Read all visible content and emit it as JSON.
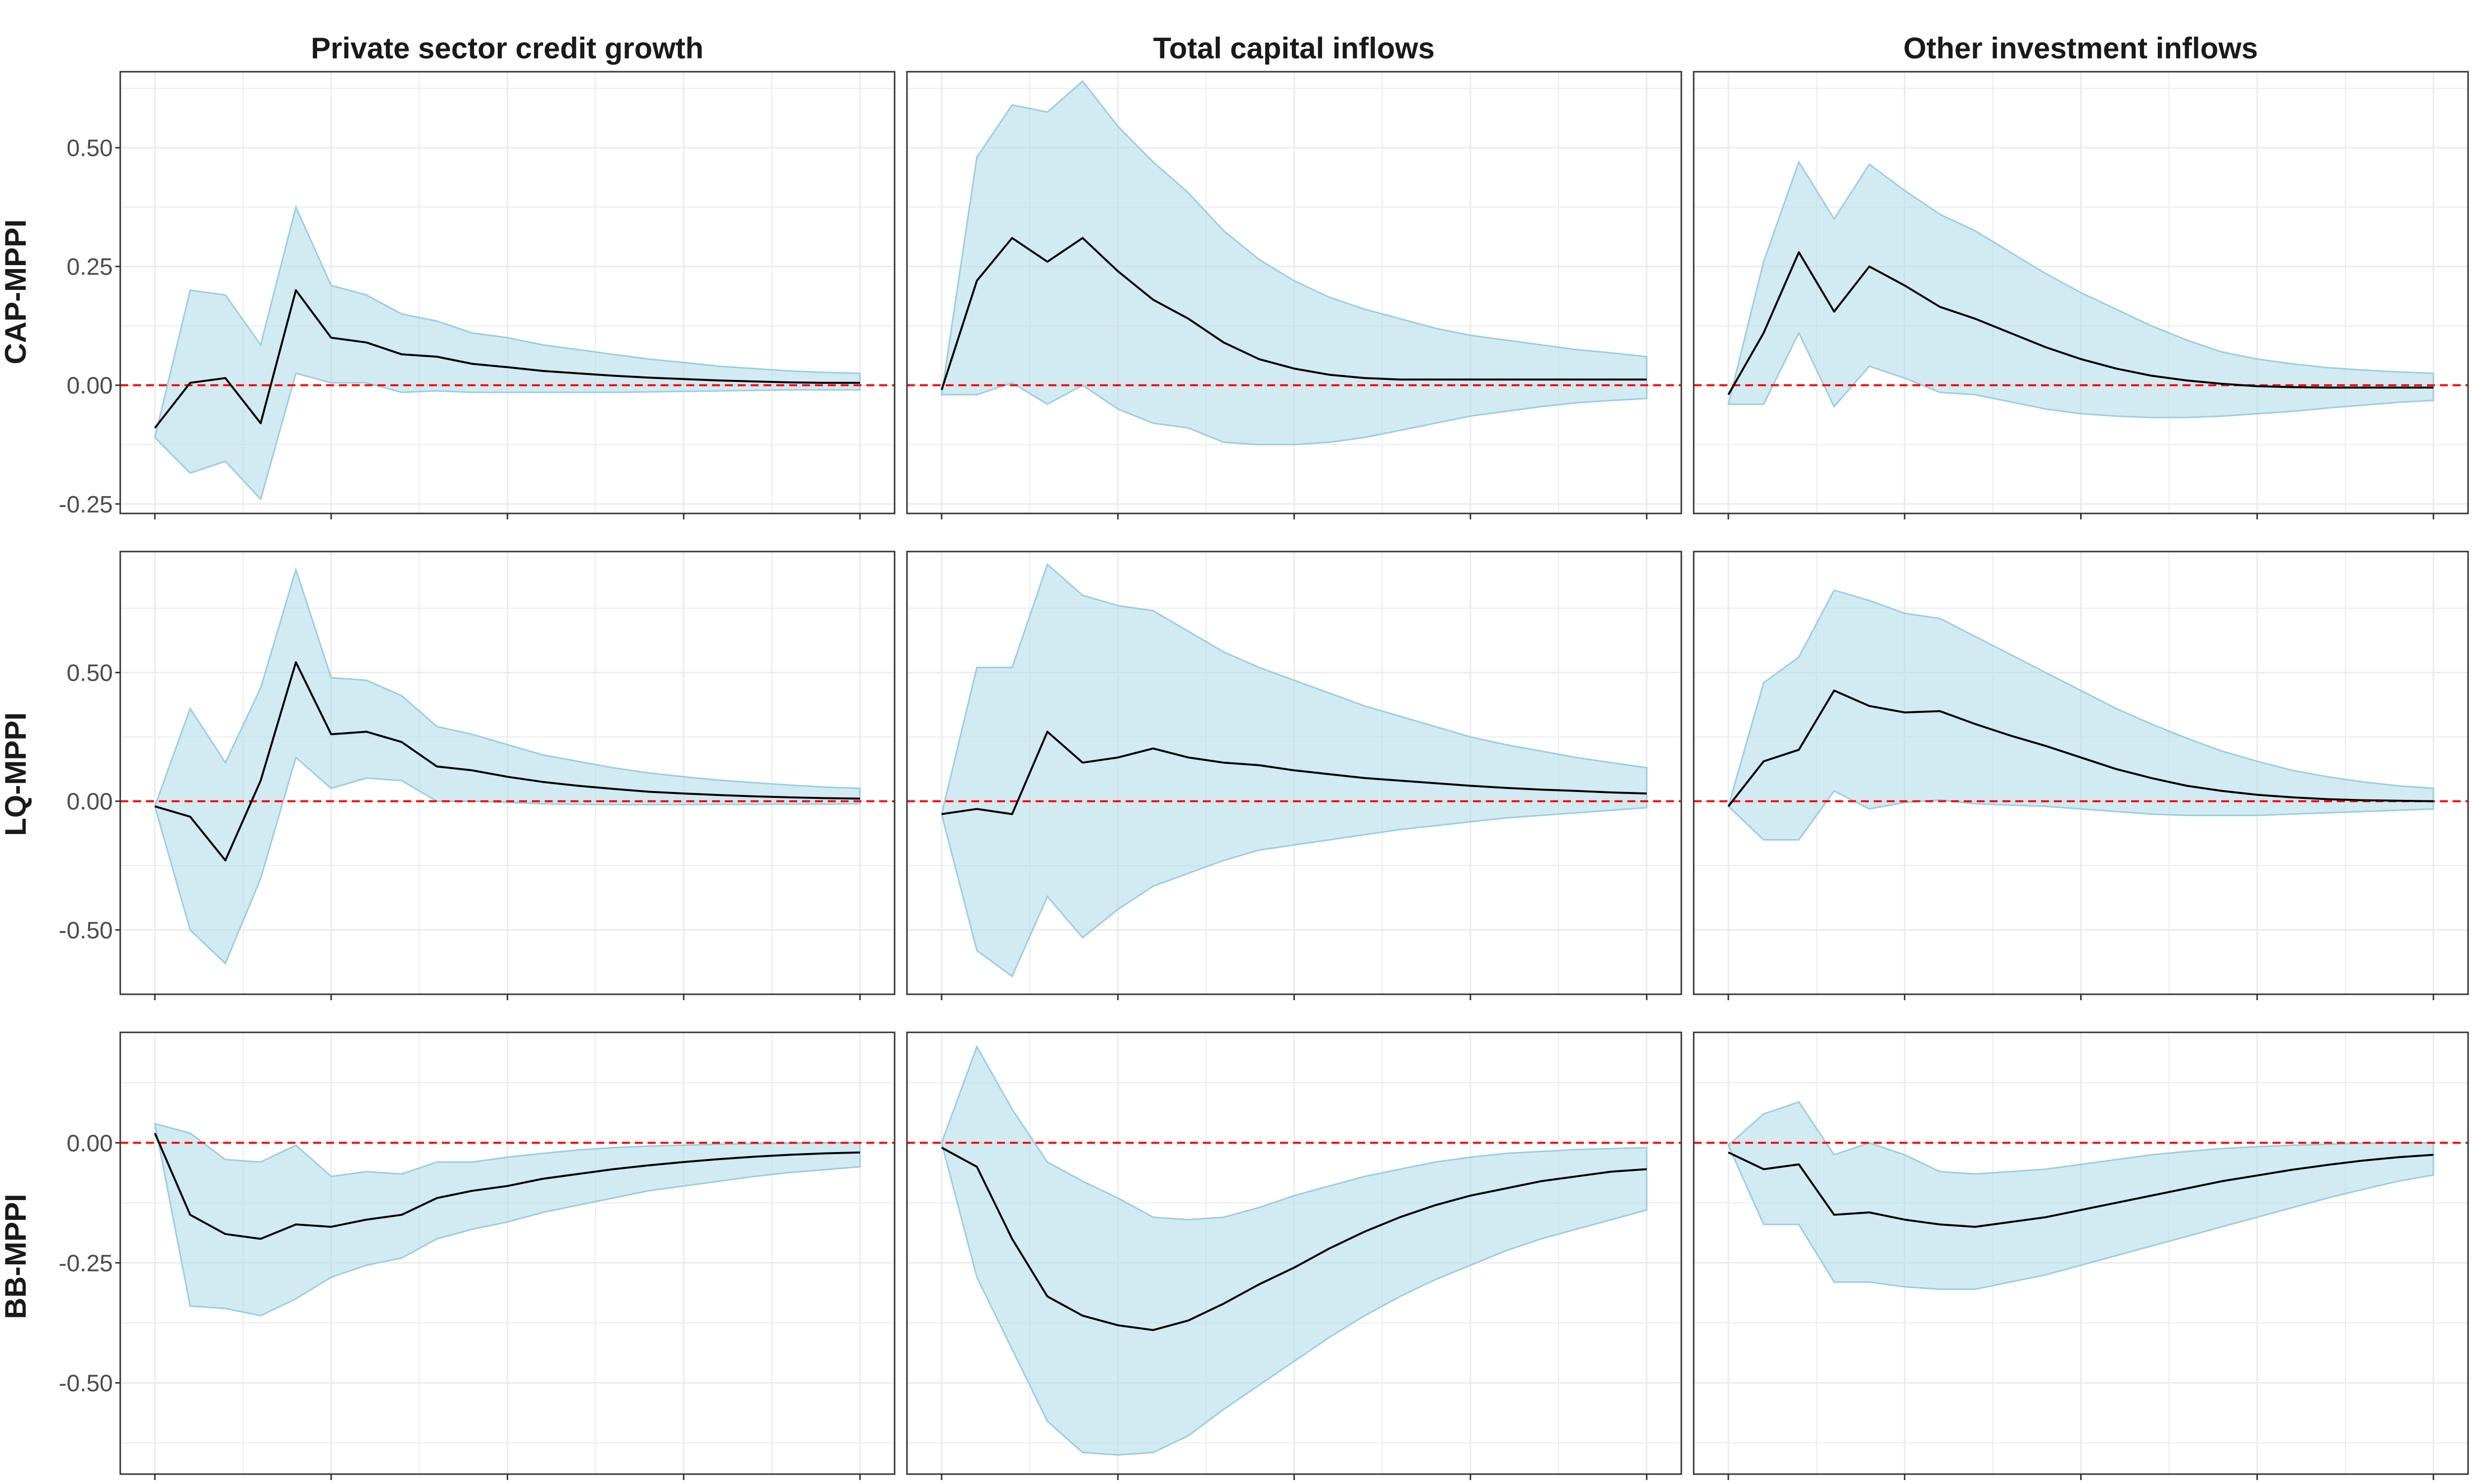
{
  "colors": {
    "band_fill": "#add8e6",
    "band_stroke": "#99cde0",
    "line": "#000000",
    "zero_line": "#ff0000",
    "grid": "#ebebeb",
    "panel_border": "#333333"
  },
  "column_titles": [
    "Private sector credit growth",
    "Total capital inflows",
    "Other investment inflows"
  ],
  "row_titles": [
    "CAP-MPPI",
    "LQ-MPPI",
    "BB-MPPI"
  ],
  "chart_data": {
    "type": "line",
    "description_of_axes": "21 horizons (0-20), unlabeled x ticks every 5 horizons; y tick labels shown per row",
    "x": [
      0,
      1,
      2,
      3,
      4,
      5,
      6,
      7,
      8,
      9,
      10,
      11,
      12,
      13,
      14,
      15,
      16,
      17,
      18,
      19,
      20
    ],
    "x_ticks": [
      0,
      5,
      10,
      15,
      20
    ],
    "x_tick_labels_shown": false,
    "grid": true,
    "zero_reference_line": "dashed red at 0",
    "rows": [
      {
        "row": "CAP-MPPI",
        "ylim": [
          -0.27,
          0.66
        ],
        "yticks": [
          -0.25,
          0,
          0.25,
          0.5
        ],
        "ytick_labels": [
          "-0.25",
          "0.00",
          "0.25",
          "0.50"
        ],
        "panels": [
          {
            "column": "Private sector credit growth",
            "irf": [
              -0.09,
              0.005,
              0.015,
              -0.08,
              0.2,
              0.1,
              0.09,
              0.065,
              0.06,
              0.045,
              0.038,
              0.03,
              0.025,
              0.02,
              0.016,
              0.013,
              0.01,
              0.008,
              0.006,
              0.005,
              0.005
            ],
            "upper": [
              -0.11,
              0.2,
              0.19,
              0.085,
              0.375,
              0.21,
              0.19,
              0.15,
              0.135,
              0.11,
              0.1,
              0.085,
              0.075,
              0.065,
              0.055,
              0.048,
              0.04,
              0.035,
              0.03,
              0.027,
              0.025
            ],
            "lower": [
              -0.11,
              -0.185,
              -0.16,
              -0.24,
              0.025,
              0.005,
              0.005,
              -0.015,
              -0.012,
              -0.015,
              -0.015,
              -0.015,
              -0.015,
              -0.015,
              -0.014,
              -0.013,
              -0.012,
              -0.011,
              -0.01,
              -0.01,
              -0.01
            ]
          },
          {
            "column": "Total capital inflows",
            "irf": [
              -0.01,
              0.22,
              0.31,
              0.26,
              0.31,
              0.24,
              0.18,
              0.14,
              0.09,
              0.055,
              0.035,
              0.022,
              0.015,
              0.012,
              0.012,
              0.012,
              0.012,
              0.012,
              0.012,
              0.012,
              0.012
            ],
            "upper": [
              -0.02,
              0.48,
              0.59,
              0.575,
              0.64,
              0.545,
              0.47,
              0.405,
              0.325,
              0.265,
              0.22,
              0.185,
              0.16,
              0.14,
              0.12,
              0.105,
              0.095,
              0.085,
              0.075,
              0.068,
              0.06
            ],
            "lower": [
              -0.02,
              -0.02,
              0.005,
              -0.04,
              0.0,
              -0.05,
              -0.08,
              -0.09,
              -0.12,
              -0.125,
              -0.125,
              -0.12,
              -0.11,
              -0.095,
              -0.08,
              -0.065,
              -0.055,
              -0.045,
              -0.037,
              -0.032,
              -0.028
            ]
          },
          {
            "column": "Other investment inflows",
            "irf": [
              -0.02,
              0.11,
              0.28,
              0.155,
              0.25,
              0.21,
              0.165,
              0.14,
              0.11,
              0.08,
              0.055,
              0.035,
              0.02,
              0.01,
              0.003,
              -0.002,
              -0.004,
              -0.005,
              -0.005,
              -0.005,
              -0.005
            ],
            "upper": [
              -0.04,
              0.26,
              0.47,
              0.35,
              0.465,
              0.41,
              0.36,
              0.325,
              0.28,
              0.235,
              0.195,
              0.16,
              0.125,
              0.095,
              0.07,
              0.055,
              0.045,
              0.037,
              0.032,
              0.028,
              0.025
            ],
            "lower": [
              -0.04,
              -0.04,
              0.11,
              -0.045,
              0.04,
              0.015,
              -0.015,
              -0.02,
              -0.035,
              -0.05,
              -0.06,
              -0.065,
              -0.068,
              -0.068,
              -0.065,
              -0.06,
              -0.055,
              -0.048,
              -0.042,
              -0.036,
              -0.032
            ]
          }
        ]
      },
      {
        "row": "LQ-MPPI",
        "ylim": [
          -0.75,
          0.97
        ],
        "yticks": [
          -0.5,
          0,
          0.5
        ],
        "ytick_labels": [
          "-0.50",
          "0.00",
          "0.50"
        ],
        "panels": [
          {
            "column": "Private sector credit growth",
            "irf": [
              -0.02,
              -0.06,
              -0.23,
              0.08,
              0.54,
              0.26,
              0.27,
              0.23,
              0.135,
              0.12,
              0.095,
              0.075,
              0.06,
              0.048,
              0.037,
              0.03,
              0.024,
              0.019,
              0.015,
              0.012,
              0.01
            ],
            "upper": [
              -0.02,
              0.36,
              0.15,
              0.44,
              0.9,
              0.48,
              0.47,
              0.41,
              0.29,
              0.26,
              0.22,
              0.18,
              0.155,
              0.13,
              0.11,
              0.095,
              0.082,
              0.072,
              0.063,
              0.055,
              0.05
            ],
            "lower": [
              -0.02,
              -0.5,
              -0.63,
              -0.3,
              0.17,
              0.05,
              0.09,
              0.08,
              0.0,
              0.0,
              -0.005,
              -0.01,
              -0.012,
              -0.013,
              -0.013,
              -0.013,
              -0.012,
              -0.012,
              -0.011,
              -0.011,
              -0.01
            ]
          },
          {
            "column": "Total capital inflows",
            "irf": [
              -0.05,
              -0.03,
              -0.05,
              0.27,
              0.15,
              0.17,
              0.205,
              0.17,
              0.15,
              0.14,
              0.12,
              0.105,
              0.09,
              0.08,
              0.07,
              0.06,
              0.052,
              0.045,
              0.04,
              0.034,
              0.03
            ],
            "upper": [
              -0.05,
              0.52,
              0.52,
              0.92,
              0.8,
              0.76,
              0.74,
              0.66,
              0.58,
              0.52,
              0.47,
              0.42,
              0.37,
              0.33,
              0.29,
              0.25,
              0.22,
              0.195,
              0.17,
              0.15,
              0.13
            ],
            "lower": [
              -0.05,
              -0.58,
              -0.68,
              -0.37,
              -0.53,
              -0.42,
              -0.33,
              -0.28,
              -0.23,
              -0.19,
              -0.17,
              -0.15,
              -0.13,
              -0.11,
              -0.095,
              -0.08,
              -0.065,
              -0.055,
              -0.045,
              -0.035,
              -0.025
            ]
          },
          {
            "column": "Other investment inflows",
            "irf": [
              -0.02,
              0.155,
              0.2,
              0.43,
              0.37,
              0.345,
              0.35,
              0.3,
              0.255,
              0.215,
              0.17,
              0.125,
              0.09,
              0.06,
              0.04,
              0.025,
              0.015,
              0.008,
              0.004,
              0.002,
              0.0
            ],
            "upper": [
              -0.02,
              0.46,
              0.56,
              0.82,
              0.78,
              0.73,
              0.71,
              0.64,
              0.57,
              0.5,
              0.43,
              0.36,
              0.3,
              0.245,
              0.195,
              0.155,
              0.12,
              0.095,
              0.075,
              0.06,
              0.05
            ],
            "lower": [
              -0.02,
              -0.15,
              -0.15,
              0.04,
              -0.03,
              -0.005,
              0.005,
              -0.01,
              -0.015,
              -0.02,
              -0.03,
              -0.04,
              -0.05,
              -0.055,
              -0.055,
              -0.055,
              -0.05,
              -0.045,
              -0.04,
              -0.035,
              -0.03
            ]
          }
        ]
      },
      {
        "row": "BB-MPPI",
        "ylim": [
          -0.69,
          0.23
        ],
        "yticks": [
          -0.5,
          -0.25,
          0
        ],
        "ytick_labels": [
          "-0.50",
          "-0.25",
          "0.00"
        ],
        "panels": [
          {
            "column": "Private sector credit growth",
            "irf": [
              0.02,
              -0.15,
              -0.19,
              -0.2,
              -0.17,
              -0.175,
              -0.16,
              -0.15,
              -0.115,
              -0.1,
              -0.09,
              -0.075,
              -0.065,
              -0.055,
              -0.047,
              -0.04,
              -0.034,
              -0.029,
              -0.025,
              -0.022,
              -0.02
            ],
            "upper": [
              0.04,
              0.02,
              -0.035,
              -0.04,
              -0.005,
              -0.07,
              -0.06,
              -0.065,
              -0.04,
              -0.04,
              -0.03,
              -0.022,
              -0.015,
              -0.01,
              -0.007,
              -0.005,
              -0.003,
              -0.002,
              -0.001,
              0.0,
              0.0
            ],
            "lower": [
              0.04,
              -0.34,
              -0.345,
              -0.36,
              -0.325,
              -0.28,
              -0.255,
              -0.24,
              -0.2,
              -0.18,
              -0.165,
              -0.145,
              -0.13,
              -0.115,
              -0.1,
              -0.09,
              -0.08,
              -0.07,
              -0.062,
              -0.056,
              -0.05
            ]
          },
          {
            "column": "Total capital inflows",
            "irf": [
              -0.01,
              -0.05,
              -0.2,
              -0.32,
              -0.36,
              -0.38,
              -0.39,
              -0.37,
              -0.335,
              -0.295,
              -0.26,
              -0.22,
              -0.185,
              -0.155,
              -0.13,
              -0.11,
              -0.095,
              -0.08,
              -0.07,
              -0.06,
              -0.055
            ],
            "upper": [
              0.0,
              0.2,
              0.07,
              -0.04,
              -0.08,
              -0.115,
              -0.155,
              -0.16,
              -0.155,
              -0.135,
              -0.11,
              -0.09,
              -0.07,
              -0.055,
              -0.04,
              -0.03,
              -0.022,
              -0.018,
              -0.014,
              -0.012,
              -0.01
            ],
            "lower": [
              0.0,
              -0.28,
              -0.43,
              -0.58,
              -0.645,
              -0.65,
              -0.645,
              -0.61,
              -0.555,
              -0.505,
              -0.455,
              -0.405,
              -0.36,
              -0.32,
              -0.285,
              -0.255,
              -0.225,
              -0.2,
              -0.18,
              -0.16,
              -0.14
            ]
          },
          {
            "column": "Other investment inflows",
            "irf": [
              -0.02,
              -0.055,
              -0.045,
              -0.15,
              -0.145,
              -0.16,
              -0.17,
              -0.175,
              -0.165,
              -0.155,
              -0.14,
              -0.125,
              -0.11,
              -0.095,
              -0.08,
              -0.068,
              -0.056,
              -0.046,
              -0.037,
              -0.03,
              -0.025
            ],
            "upper": [
              -0.005,
              0.06,
              0.085,
              -0.025,
              0.0,
              -0.025,
              -0.06,
              -0.065,
              -0.06,
              -0.055,
              -0.045,
              -0.035,
              -0.025,
              -0.018,
              -0.012,
              -0.008,
              -0.005,
              -0.003,
              -0.001,
              0.0,
              0.0
            ],
            "lower": [
              -0.005,
              -0.17,
              -0.17,
              -0.29,
              -0.29,
              -0.3,
              -0.305,
              -0.305,
              -0.29,
              -0.275,
              -0.255,
              -0.235,
              -0.215,
              -0.195,
              -0.175,
              -0.155,
              -0.135,
              -0.115,
              -0.097,
              -0.08,
              -0.067
            ]
          }
        ]
      }
    ]
  }
}
